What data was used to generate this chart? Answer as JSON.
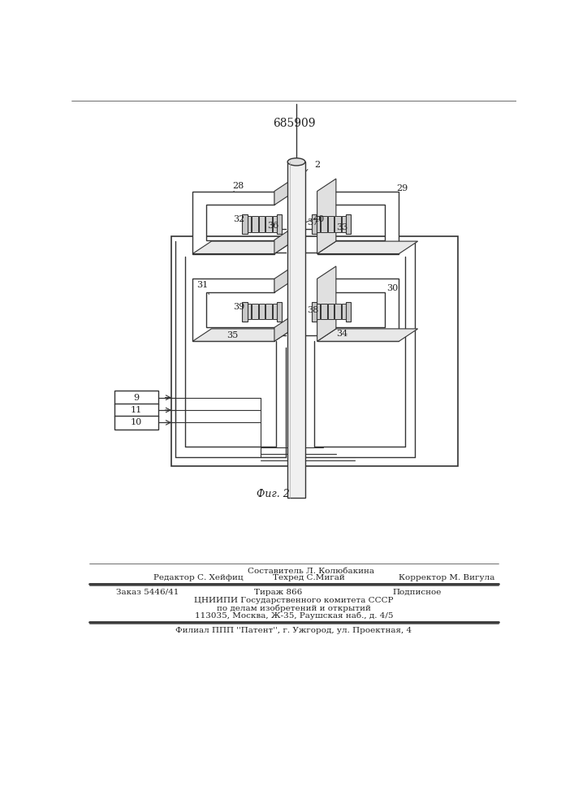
{
  "patent_number": "685909",
  "fig_label": "Фиг. 2",
  "background_color": "#ffffff",
  "line_color": "#333333",
  "text_color": "#222222",
  "footer": {
    "line1_left": "Редактор С. Хейфиц",
    "line1_center_top": "Составитель Л. Колюбакина",
    "line1_center_bot": "Техред С.Мигай",
    "line1_right": "Корректор М. Вигула",
    "line2_left": "Заказ 5446/41",
    "line2_center": "Тираж 866",
    "line2_right": "Подписное",
    "line3": "ЦНИИПИ Государственного комитета СССР",
    "line4": "по делам изобретений и открытий",
    "line5": "113035, Москва, Ж-35, Раушская наб., д. 4/5",
    "line6": "Филиал ППП ''Патент'', г. Ужгород, ул. Проектная, 4"
  }
}
